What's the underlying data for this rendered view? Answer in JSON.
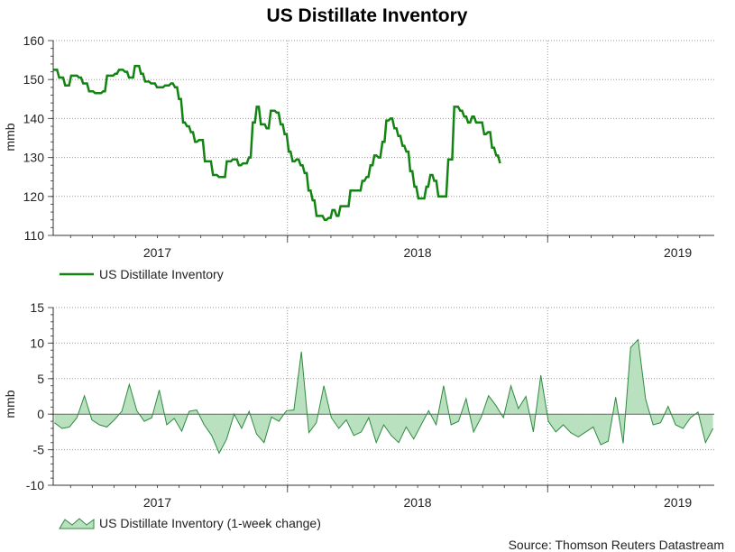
{
  "chart_data": [
    {
      "type": "line",
      "title": "US Distillate Inventory",
      "ylabel": "mmb",
      "xlabel": "",
      "ylim": [
        110,
        160
      ],
      "yticks": [
        110,
        120,
        130,
        140,
        150,
        160
      ],
      "xlim": [
        2016.6,
        2019.14
      ],
      "xtick_labels": [
        {
          "label": "2017",
          "x": 2017.0
        },
        {
          "label": "2018",
          "x": 2018.0
        },
        {
          "label": "2019",
          "x": 2019.0
        }
      ],
      "year_lines": [
        2017.5,
        2018.5
      ],
      "grid": true,
      "legend_position": "bottom-left",
      "series": [
        {
          "name": "US Distillate Inventory",
          "color": "#128412",
          "points": [
            [
              2016.6,
              152.5
            ],
            [
              2016.615,
              152.5
            ],
            [
              2016.623,
              150.5
            ],
            [
              2016.638,
              150.5
            ],
            [
              2016.646,
              148.5
            ],
            [
              2016.661,
              148.5
            ],
            [
              2016.669,
              151
            ],
            [
              2016.692,
              151
            ],
            [
              2016.699,
              150.5
            ],
            [
              2016.707,
              150.5
            ],
            [
              2016.715,
              149
            ],
            [
              2016.73,
              149
            ],
            [
              2016.738,
              147
            ],
            [
              2016.753,
              147
            ],
            [
              2016.761,
              146.5
            ],
            [
              2016.784,
              146.5
            ],
            [
              2016.792,
              147
            ],
            [
              2016.799,
              147
            ],
            [
              2016.807,
              151
            ],
            [
              2016.83,
              151
            ],
            [
              2016.838,
              151.5
            ],
            [
              2016.845,
              151.5
            ],
            [
              2016.853,
              152.5
            ],
            [
              2016.868,
              152.5
            ],
            [
              2016.876,
              152
            ],
            [
              2016.884,
              152
            ],
            [
              2016.891,
              150.5
            ],
            [
              2016.907,
              150.5
            ],
            [
              2016.914,
              153.5
            ],
            [
              2016.93,
              153.5
            ],
            [
              2016.937,
              151.5
            ],
            [
              2016.945,
              151.5
            ],
            [
              2016.953,
              149.5
            ],
            [
              2016.968,
              149.5
            ],
            [
              2016.976,
              149
            ],
            [
              2016.991,
              149
            ],
            [
              2016.999,
              148
            ],
            [
              2017.022,
              148
            ],
            [
              2017.03,
              148.5
            ],
            [
              2017.045,
              148.5
            ],
            [
              2017.053,
              149
            ],
            [
              2017.06,
              149
            ],
            [
              2017.068,
              148
            ],
            [
              2017.076,
              148
            ],
            [
              2017.083,
              145
            ],
            [
              2017.091,
              145
            ],
            [
              2017.099,
              139
            ],
            [
              2017.106,
              139
            ],
            [
              2017.114,
              138
            ],
            [
              2017.122,
              138
            ],
            [
              2017.129,
              136.5
            ],
            [
              2017.137,
              136.5
            ],
            [
              2017.145,
              134
            ],
            [
              2017.152,
              134
            ],
            [
              2017.16,
              134.5
            ],
            [
              2017.175,
              134.5
            ],
            [
              2017.183,
              129
            ],
            [
              2017.206,
              129
            ],
            [
              2017.214,
              125.5
            ],
            [
              2017.229,
              125.5
            ],
            [
              2017.237,
              125
            ],
            [
              2017.26,
              125
            ],
            [
              2017.267,
              129
            ],
            [
              2017.283,
              129
            ],
            [
              2017.29,
              129.5
            ],
            [
              2017.306,
              129.5
            ],
            [
              2017.313,
              128
            ],
            [
              2017.321,
              128
            ],
            [
              2017.329,
              128.5
            ],
            [
              2017.344,
              128.5
            ],
            [
              2017.352,
              130
            ],
            [
              2017.359,
              130
            ],
            [
              2017.367,
              139
            ],
            [
              2017.375,
              139
            ],
            [
              2017.382,
              143
            ],
            [
              2017.39,
              143
            ],
            [
              2017.398,
              138.5
            ],
            [
              2017.413,
              138.5
            ],
            [
              2017.42,
              137.5
            ],
            [
              2017.428,
              137.5
            ],
            [
              2017.436,
              142
            ],
            [
              2017.451,
              142
            ],
            [
              2017.459,
              141.5
            ],
            [
              2017.466,
              141.5
            ],
            [
              2017.474,
              138.5
            ],
            [
              2017.482,
              138.5
            ],
            [
              2017.489,
              136
            ],
            [
              2017.497,
              136
            ],
            [
              2017.505,
              131.5
            ],
            [
              2017.512,
              131.5
            ],
            [
              2017.52,
              129
            ],
            [
              2017.528,
              129
            ],
            [
              2017.535,
              129.5
            ],
            [
              2017.543,
              129.5
            ],
            [
              2017.551,
              128
            ],
            [
              2017.558,
              128
            ],
            [
              2017.566,
              126
            ],
            [
              2017.574,
              126
            ],
            [
              2017.581,
              121.5
            ],
            [
              2017.589,
              121.5
            ],
            [
              2017.597,
              119
            ],
            [
              2017.604,
              119
            ],
            [
              2017.612,
              115
            ],
            [
              2017.635,
              115
            ],
            [
              2017.643,
              114
            ],
            [
              2017.65,
              114
            ],
            [
              2017.658,
              114.5
            ],
            [
              2017.666,
              114.5
            ],
            [
              2017.673,
              116.5
            ],
            [
              2017.681,
              116.5
            ],
            [
              2017.689,
              115
            ],
            [
              2017.696,
              115
            ],
            [
              2017.704,
              117.5
            ],
            [
              2017.735,
              117.5
            ],
            [
              2017.742,
              121.5
            ],
            [
              2017.758,
              121.5
            ],
            [
              2017.765,
              121.5
            ],
            [
              2017.781,
              121.5
            ],
            [
              2017.788,
              124
            ],
            [
              2017.796,
              124
            ],
            [
              2017.804,
              125
            ],
            [
              2017.811,
              125
            ],
            [
              2017.819,
              128
            ],
            [
              2017.827,
              128
            ],
            [
              2017.834,
              130.5
            ],
            [
              2017.842,
              130.5
            ],
            [
              2017.85,
              130
            ],
            [
              2017.857,
              130
            ],
            [
              2017.865,
              134
            ],
            [
              2017.873,
              134
            ],
            [
              2017.88,
              139.5
            ],
            [
              2017.888,
              139.5
            ],
            [
              2017.896,
              140
            ],
            [
              2017.903,
              140
            ],
            [
              2017.911,
              137.5
            ],
            [
              2017.919,
              137.5
            ],
            [
              2017.926,
              135.5
            ],
            [
              2017.934,
              135.5
            ],
            [
              2017.942,
              133
            ],
            [
              2017.949,
              133
            ],
            [
              2017.957,
              131.5
            ],
            [
              2017.965,
              131.5
            ],
            [
              2017.972,
              126.5
            ],
            [
              2017.98,
              126.5
            ],
            [
              2017.988,
              122.5
            ],
            [
              2017.995,
              122.5
            ],
            [
              2018.003,
              119.5
            ],
            [
              2018.026,
              119.5
            ],
            [
              2018.034,
              122.5
            ],
            [
              2018.041,
              122.5
            ],
            [
              2018.049,
              125.5
            ],
            [
              2018.057,
              125.5
            ],
            [
              2018.064,
              124
            ],
            [
              2018.072,
              124
            ],
            [
              2018.08,
              120
            ],
            [
              2018.11,
              120
            ],
            [
              2018.118,
              129.5
            ],
            [
              2018.133,
              129.5
            ],
            [
              2018.141,
              143
            ],
            [
              2018.156,
              143
            ],
            [
              2018.164,
              142
            ],
            [
              2018.171,
              142
            ],
            [
              2018.179,
              140.5
            ],
            [
              2018.187,
              140.5
            ],
            [
              2018.194,
              139
            ],
            [
              2018.202,
              139
            ],
            [
              2018.21,
              140.5
            ],
            [
              2018.217,
              140.5
            ],
            [
              2018.225,
              139
            ],
            [
              2018.248,
              139
            ],
            [
              2018.256,
              136
            ],
            [
              2018.263,
              136
            ],
            [
              2018.271,
              136.5
            ],
            [
              2018.279,
              136.5
            ],
            [
              2018.286,
              132.5
            ],
            [
              2018.294,
              132.5
            ],
            [
              2018.302,
              130.5
            ],
            [
              2018.309,
              130.5
            ],
            [
              2018.317,
              128.5
            ]
          ]
        }
      ]
    },
    {
      "type": "area",
      "title": "",
      "ylabel": "mmb",
      "xlabel": "",
      "ylim": [
        -10,
        15
      ],
      "yticks": [
        -10,
        -5,
        0,
        5,
        10,
        15
      ],
      "xlim": [
        2016.6,
        2019.14
      ],
      "xtick_labels": [
        {
          "label": "2017",
          "x": 2017.0
        },
        {
          "label": "2018",
          "x": 2018.0
        },
        {
          "label": "2019",
          "x": 2019.0
        }
      ],
      "year_lines": [
        2017.5,
        2018.5
      ],
      "grid": true,
      "legend_position": "bottom-left",
      "series": [
        {
          "name": "US Distillate Inventory (1-week change)",
          "fill_color": "#b9e0bf",
          "line_color": "#2e8b3f",
          "weekly_changes": [
            -1.2,
            -2.0,
            -1.8,
            -0.5,
            2.6,
            -0.8,
            -1.5,
            -1.8,
            -0.8,
            0.4,
            4.2,
            0.5,
            -1.0,
            -0.5,
            3.4,
            -1.5,
            -0.6,
            -2.4,
            0.4,
            0.6,
            -1.5,
            -3.0,
            -5.5,
            -3.5,
            0,
            -2.0,
            0.4,
            -2.8,
            -4.0,
            -0.4,
            -1.0,
            0.5,
            0.6,
            8.8,
            -2.6,
            -1.2,
            4.0,
            -0.5,
            -2.0,
            -0.8,
            -3.0,
            -2.5,
            -0.5,
            -4.0,
            -1.5,
            -3.0,
            -4.0,
            -1.8,
            -3.5,
            -1.5,
            0.5,
            -1.5,
            4.0,
            -1.5,
            -1.0,
            2.2,
            -2.5,
            -0.5,
            2.6,
            1.2,
            -0.5,
            4.0,
            0.8,
            2.5,
            -2.5,
            5.5,
            -1.0,
            -2.5,
            -1.5,
            -2.6,
            -3.2,
            -2.5,
            -1.8,
            -4.3,
            -3.8,
            2.4,
            -4.1,
            9.4,
            10.5,
            2.1,
            -1.5,
            -1.2,
            1.1,
            -1.5,
            -2.0,
            -0.5,
            0.3,
            -4.0,
            -2.0
          ]
        }
      ]
    }
  ],
  "source": "Source: Thomson Reuters Datastream"
}
